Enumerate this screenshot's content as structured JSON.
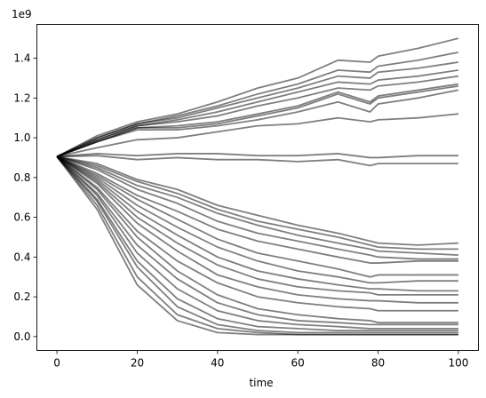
{
  "chart_data": {
    "type": "line",
    "title": "",
    "xlabel": "time",
    "ylabel": "",
    "y_offset_label": "1e9",
    "xlim": [
      -5,
      105
    ],
    "ylim": [
      -0.07,
      1.57
    ],
    "x_ticks": [
      0,
      20,
      40,
      60,
      80,
      100
    ],
    "x_tick_labels": [
      "0",
      "20",
      "40",
      "60",
      "80",
      "100"
    ],
    "y_ticks": [
      0.0,
      0.2,
      0.4,
      0.6,
      0.8,
      1.0,
      1.2,
      1.4
    ],
    "y_tick_labels": [
      "0.0",
      "0.2",
      "0.4",
      "0.6",
      "0.8",
      "1.0",
      "1.2",
      "1.4"
    ],
    "grid": false,
    "legend": "none",
    "line_color": "#000000",
    "line_opacity": 0.5,
    "x": [
      0,
      10,
      20,
      30,
      40,
      50,
      60,
      70,
      78,
      80,
      90,
      100
    ],
    "series": [
      {
        "values": [
          0.905,
          1.01,
          1.08,
          1.12,
          1.18,
          1.25,
          1.3,
          1.39,
          1.38,
          1.41,
          1.45,
          1.5
        ]
      },
      {
        "values": [
          0.905,
          1.0,
          1.07,
          1.11,
          1.16,
          1.22,
          1.27,
          1.34,
          1.33,
          1.36,
          1.39,
          1.43
        ]
      },
      {
        "values": [
          0.905,
          1.0,
          1.07,
          1.1,
          1.15,
          1.2,
          1.25,
          1.31,
          1.3,
          1.33,
          1.35,
          1.38
        ]
      },
      {
        "values": [
          0.905,
          0.99,
          1.06,
          1.09,
          1.13,
          1.18,
          1.23,
          1.28,
          1.27,
          1.29,
          1.31,
          1.34
        ]
      },
      {
        "values": [
          0.905,
          0.99,
          1.06,
          1.08,
          1.11,
          1.16,
          1.2,
          1.25,
          1.24,
          1.26,
          1.28,
          1.31
        ]
      },
      {
        "values": [
          0.905,
          0.98,
          1.05,
          1.06,
          1.08,
          1.12,
          1.16,
          1.23,
          1.18,
          1.21,
          1.24,
          1.27
        ]
      },
      {
        "values": [
          0.905,
          0.98,
          1.05,
          1.05,
          1.07,
          1.11,
          1.15,
          1.22,
          1.17,
          1.2,
          1.23,
          1.26
        ]
      },
      {
        "values": [
          0.905,
          0.98,
          1.04,
          1.04,
          1.06,
          1.09,
          1.13,
          1.18,
          1.13,
          1.17,
          1.2,
          1.24
        ]
      },
      {
        "values": [
          0.905,
          0.95,
          0.99,
          1.0,
          1.03,
          1.06,
          1.07,
          1.1,
          1.08,
          1.09,
          1.1,
          1.12
        ]
      },
      {
        "values": [
          0.905,
          0.92,
          0.91,
          0.92,
          0.92,
          0.91,
          0.91,
          0.92,
          0.9,
          0.9,
          0.91,
          0.91
        ]
      },
      {
        "values": [
          0.905,
          0.91,
          0.89,
          0.9,
          0.89,
          0.89,
          0.88,
          0.89,
          0.86,
          0.87,
          0.87,
          0.87
        ]
      },
      {
        "values": [
          0.905,
          0.87,
          0.79,
          0.74,
          0.66,
          0.61,
          0.56,
          0.52,
          0.48,
          0.47,
          0.46,
          0.47
        ]
      },
      {
        "values": [
          0.905,
          0.86,
          0.78,
          0.72,
          0.64,
          0.58,
          0.54,
          0.5,
          0.46,
          0.45,
          0.44,
          0.44
        ]
      },
      {
        "values": [
          0.905,
          0.85,
          0.76,
          0.7,
          0.62,
          0.56,
          0.51,
          0.47,
          0.44,
          0.43,
          0.42,
          0.41
        ]
      },
      {
        "values": [
          0.905,
          0.84,
          0.74,
          0.67,
          0.58,
          0.52,
          0.48,
          0.44,
          0.41,
          0.4,
          0.39,
          0.39
        ]
      },
      {
        "values": [
          0.905,
          0.82,
          0.71,
          0.63,
          0.54,
          0.48,
          0.44,
          0.4,
          0.37,
          0.37,
          0.38,
          0.38
        ]
      },
      {
        "values": [
          0.905,
          0.81,
          0.69,
          0.59,
          0.49,
          0.42,
          0.38,
          0.34,
          0.3,
          0.31,
          0.31,
          0.31
        ]
      },
      {
        "values": [
          0.905,
          0.8,
          0.66,
          0.55,
          0.45,
          0.38,
          0.33,
          0.3,
          0.27,
          0.27,
          0.28,
          0.28
        ]
      },
      {
        "values": [
          0.905,
          0.79,
          0.63,
          0.51,
          0.4,
          0.33,
          0.29,
          0.26,
          0.24,
          0.24,
          0.23,
          0.23
        ]
      },
      {
        "values": [
          0.905,
          0.78,
          0.6,
          0.47,
          0.36,
          0.29,
          0.25,
          0.23,
          0.22,
          0.21,
          0.21,
          0.21
        ]
      },
      {
        "values": [
          0.905,
          0.77,
          0.57,
          0.43,
          0.31,
          0.25,
          0.21,
          0.19,
          0.18,
          0.18,
          0.17,
          0.17
        ]
      },
      {
        "values": [
          0.905,
          0.75,
          0.53,
          0.38,
          0.27,
          0.2,
          0.17,
          0.15,
          0.14,
          0.13,
          0.13,
          0.13
        ]
      },
      {
        "values": [
          0.905,
          0.74,
          0.5,
          0.33,
          0.21,
          0.14,
          0.11,
          0.09,
          0.08,
          0.07,
          0.07,
          0.07
        ]
      },
      {
        "values": [
          0.905,
          0.72,
          0.46,
          0.29,
          0.17,
          0.11,
          0.08,
          0.07,
          0.06,
          0.06,
          0.06,
          0.06
        ]
      },
      {
        "values": [
          0.905,
          0.71,
          0.42,
          0.24,
          0.13,
          0.08,
          0.06,
          0.05,
          0.04,
          0.04,
          0.04,
          0.04
        ]
      },
      {
        "values": [
          0.905,
          0.69,
          0.38,
          0.19,
          0.09,
          0.05,
          0.04,
          0.03,
          0.03,
          0.03,
          0.03,
          0.03
        ]
      },
      {
        "values": [
          0.905,
          0.68,
          0.35,
          0.15,
          0.06,
          0.03,
          0.02,
          0.02,
          0.02,
          0.02,
          0.02,
          0.02
        ]
      },
      {
        "values": [
          0.905,
          0.66,
          0.3,
          0.11,
          0.04,
          0.02,
          0.01,
          0.01,
          0.01,
          0.01,
          0.01,
          0.01
        ]
      },
      {
        "values": [
          0.905,
          0.64,
          0.26,
          0.08,
          0.02,
          0.01,
          0.01,
          0.01,
          0.01,
          0.01,
          0.01,
          0.01
        ]
      }
    ]
  }
}
